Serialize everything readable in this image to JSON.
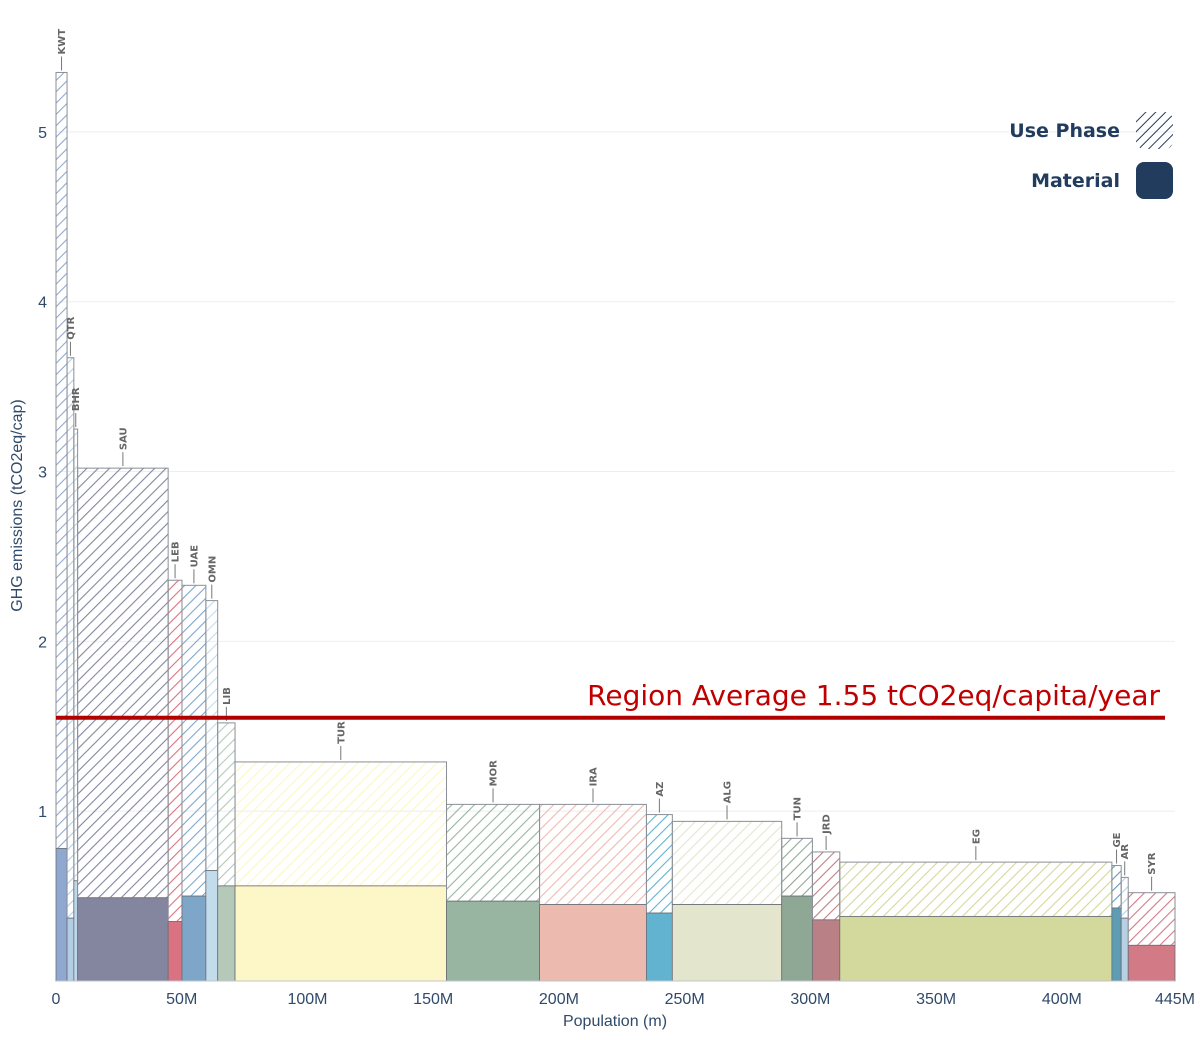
{
  "chart_data": {
    "type": "bar",
    "subtype": "variable-width stacked (marimekko)",
    "ylabel": "GHG emissions (tCO2eq/cap)",
    "xlabel": "Population (m)",
    "xlim": [
      0,
      445
    ],
    "ylim": [
      0,
      5.6
    ],
    "x_ticks": [
      {
        "value": 0,
        "label": "0"
      },
      {
        "value": 50,
        "label": "50M"
      },
      {
        "value": 100,
        "label": "100M"
      },
      {
        "value": 150,
        "label": "150M"
      },
      {
        "value": 200,
        "label": "200M"
      },
      {
        "value": 250,
        "label": "250M"
      },
      {
        "value": 300,
        "label": "300M"
      },
      {
        "value": 350,
        "label": "350M"
      },
      {
        "value": 400,
        "label": "400M"
      },
      {
        "value": 445,
        "label": "445M"
      }
    ],
    "y_ticks": [
      {
        "value": 1,
        "label": "1"
      },
      {
        "value": 2,
        "label": "2"
      },
      {
        "value": 3,
        "label": "3"
      },
      {
        "value": 4,
        "label": "4"
      },
      {
        "value": 5,
        "label": "5"
      }
    ],
    "legend": [
      {
        "name": "Use Phase",
        "style": "hatched"
      },
      {
        "name": "Material",
        "style": "solid"
      }
    ],
    "reference_line": {
      "value": 1.55,
      "label": "Region Average 1.55 tCO2eq/capita/year",
      "color": "#b00000"
    },
    "countries": [
      {
        "code": "KWT",
        "label": "KWT",
        "x0": 0,
        "x1": 4.4,
        "material": 0.78,
        "total": 5.35,
        "color": "#8fa8d0"
      },
      {
        "code": "QTR",
        "label": "QTR",
        "x0": 4.4,
        "x1": 7.1,
        "material": 0.37,
        "total": 3.67,
        "color": "#b5cde3"
      },
      {
        "code": "BHR",
        "label": "BHR",
        "x0": 7.1,
        "x1": 8.6,
        "material": 0.59,
        "total": 3.25,
        "color": "#bcd8ea"
      },
      {
        "code": "SAU",
        "label": "SAU",
        "x0": 8.6,
        "x1": 44.6,
        "material": 0.49,
        "total": 3.02,
        "color": "#84859f"
      },
      {
        "code": "LEB",
        "label": "LEB",
        "x0": 44.6,
        "x1": 50.1,
        "material": 0.35,
        "total": 2.36,
        "color": "#d97381"
      },
      {
        "code": "UAE",
        "label": "UAE",
        "x0": 50.1,
        "x1": 59.6,
        "material": 0.5,
        "total": 2.33,
        "color": "#7ea6c9"
      },
      {
        "code": "OMN",
        "label": "OMN",
        "x0": 59.6,
        "x1": 64.3,
        "material": 0.65,
        "total": 2.24,
        "color": "#c3dcec"
      },
      {
        "code": "LIB",
        "label": "LIB",
        "x0": 64.3,
        "x1": 71.2,
        "material": 0.56,
        "total": 1.52,
        "color": "#b4c9b8"
      },
      {
        "code": "TUR",
        "label": "TUR",
        "x0": 71.2,
        "x1": 155.3,
        "material": 0.56,
        "total": 1.29,
        "color": "#fdf6c6"
      },
      {
        "code": "MOR",
        "label": "MOR",
        "x0": 155.3,
        "x1": 192.3,
        "material": 0.47,
        "total": 1.04,
        "color": "#98b5a2"
      },
      {
        "code": "IRA",
        "label": "IRA",
        "x0": 192.3,
        "x1": 234.8,
        "material": 0.45,
        "total": 1.04,
        "color": "#edbab0"
      },
      {
        "code": "AZ",
        "label": "AZ",
        "x0": 234.8,
        "x1": 245.1,
        "material": 0.4,
        "total": 0.98,
        "color": "#62b3cf"
      },
      {
        "code": "ALG",
        "label": "ALG",
        "x0": 245.1,
        "x1": 288.6,
        "material": 0.45,
        "total": 0.94,
        "color": "#e3e6cd"
      },
      {
        "code": "TUN",
        "label": "TUN",
        "x0": 288.6,
        "x1": 300.8,
        "material": 0.5,
        "total": 0.84,
        "color": "#8fa795"
      },
      {
        "code": "JRD",
        "label": "JRD",
        "x0": 300.8,
        "x1": 311.7,
        "material": 0.36,
        "total": 0.76,
        "color": "#b98086"
      },
      {
        "code": "EG",
        "label": "EG",
        "x0": 311.7,
        "x1": 419.9,
        "material": 0.38,
        "total": 0.7,
        "color": "#d3d89c"
      },
      {
        "code": "GE",
        "label": "GE",
        "x0": 419.9,
        "x1": 423.6,
        "material": 0.43,
        "total": 0.68,
        "color": "#5e9cb3"
      },
      {
        "code": "AR",
        "label": "AR",
        "x0": 423.6,
        "x1": 426.4,
        "material": 0.37,
        "total": 0.61,
        "color": "#b8d0e4"
      },
      {
        "code": "SYR",
        "label": "SYR",
        "x0": 426.4,
        "x1": 445,
        "material": 0.21,
        "total": 0.52,
        "color": "#d27a86"
      }
    ]
  }
}
